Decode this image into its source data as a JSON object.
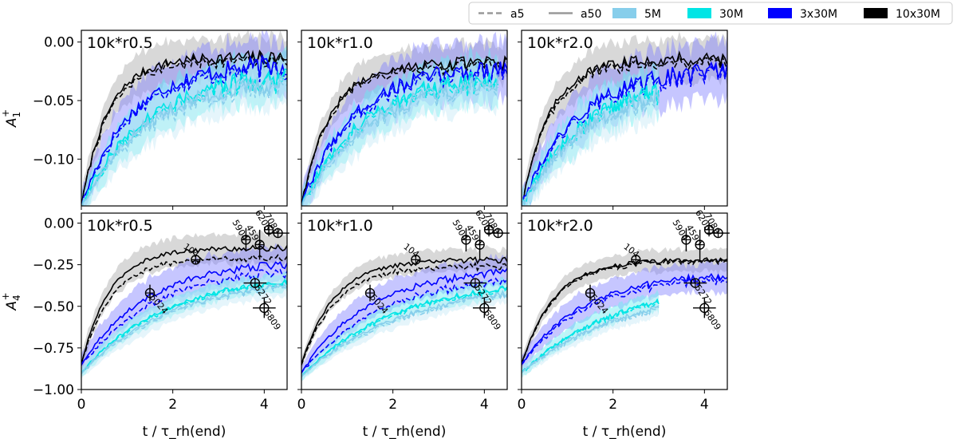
{
  "chart_data": {
    "type": "line",
    "layout": "2x3 grid of line plots with shaded bands",
    "legend": {
      "placement": "top-right",
      "entries": [
        {
          "label": "a5",
          "style": "dashed",
          "color": "#999999"
        },
        {
          "label": "a50",
          "style": "solid",
          "color": "#999999"
        },
        {
          "label": "5M",
          "style": "patch",
          "color": "#87ceeb"
        },
        {
          "label": "30M",
          "style": "patch",
          "color": "#00e5e5"
        },
        {
          "label": "3x30M",
          "style": "patch",
          "color": "#0000ff"
        },
        {
          "label": "10x30M",
          "style": "patch",
          "color": "#000000"
        }
      ]
    },
    "xlabel": "t / τ_rh(end)",
    "xlim": [
      0,
      4.5
    ],
    "xticks": [
      "0",
      "2",
      "4"
    ],
    "rows": [
      {
        "ylabel_main": "A",
        "ylabel_sub": "1",
        "ylabel_sup": "+",
        "ylim": [
          -0.14,
          0.01
        ],
        "yticks": [
          {
            "v": 0.0,
            "label": "0.00"
          },
          {
            "v": -0.05,
            "label": "−0.05"
          },
          {
            "v": -0.1,
            "label": "−0.10"
          }
        ],
        "panels": [
          {
            "title": "10k*r0.5",
            "series": [
              {
                "name": "10x30M",
                "color": "#000000",
                "band": "#a9a9a9",
                "xmax": 4.5,
                "start": -0.14,
                "end": -0.013,
                "k": 1.7,
                "noise": 0.002,
                "width": 0.016
              },
              {
                "name": "3x30M",
                "color": "#0000ff",
                "band": "#8080ff",
                "xmax": 4.5,
                "start": -0.14,
                "end": -0.018,
                "k": 0.95,
                "noise": 0.003,
                "width": 0.02
              },
              {
                "name": "30M",
                "color": "#00e5e5",
                "band": "#66f0f0",
                "xmax": 4.5,
                "start": -0.14,
                "end": -0.026,
                "k": 0.75,
                "noise": 0.003,
                "width": 0.018
              },
              {
                "name": "5M",
                "color": "#87ceeb",
                "band": "#c6e9f6",
                "xmax": 4.5,
                "start": -0.14,
                "end": -0.03,
                "k": 0.7,
                "noise": 0.003,
                "width": 0.018
              }
            ]
          },
          {
            "title": "10k*r1.0",
            "series": [
              {
                "name": "10x30M",
                "color": "#000000",
                "band": "#a9a9a9",
                "xmax": 4.5,
                "start": -0.14,
                "end": -0.018,
                "k": 1.6,
                "noise": 0.002,
                "width": 0.014
              },
              {
                "name": "3x30M",
                "color": "#0000ff",
                "band": "#8080ff",
                "xmax": 4.5,
                "start": -0.14,
                "end": -0.02,
                "k": 0.9,
                "noise": 0.003,
                "width": 0.022
              },
              {
                "name": "30M",
                "color": "#00e5e5",
                "band": "#66f0f0",
                "xmax": 4.3,
                "start": -0.14,
                "end": -0.026,
                "k": 0.75,
                "noise": 0.003,
                "width": 0.018
              },
              {
                "name": "5M",
                "color": "#87ceeb",
                "band": "#c6e9f6",
                "xmax": 4.3,
                "start": -0.14,
                "end": -0.03,
                "k": 0.7,
                "noise": 0.003,
                "width": 0.018
              }
            ]
          },
          {
            "title": "10k*r2.0",
            "series": [
              {
                "name": "10x30M",
                "color": "#000000",
                "band": "#a9a9a9",
                "xmax": 4.5,
                "start": -0.14,
                "end": -0.014,
                "k": 1.6,
                "noise": 0.002,
                "width": 0.016
              },
              {
                "name": "3x30M",
                "color": "#0000ff",
                "band": "#8080ff",
                "xmax": 4.5,
                "start": -0.14,
                "end": -0.022,
                "k": 0.85,
                "noise": 0.003,
                "width": 0.022
              },
              {
                "name": "30M",
                "color": "#00e5e5",
                "band": "#66f0f0",
                "xmax": 3.0,
                "start": -0.14,
                "end": -0.03,
                "k": 0.75,
                "noise": 0.003,
                "width": 0.018
              },
              {
                "name": "5M",
                "color": "#87ceeb",
                "band": "#c6e9f6",
                "xmax": 3.0,
                "start": -0.14,
                "end": -0.034,
                "k": 0.7,
                "noise": 0.003,
                "width": 0.018
              }
            ]
          }
        ]
      },
      {
        "ylabel_main": "A",
        "ylabel_sub": "4",
        "ylabel_sup": "+",
        "ylim": [
          -1.0,
          0.06
        ],
        "yticks": [
          {
            "v": 0.0,
            "label": "0.00"
          },
          {
            "v": -0.25,
            "label": "−0.25"
          },
          {
            "v": -0.5,
            "label": "−0.50"
          },
          {
            "v": -0.75,
            "label": "−0.75"
          },
          {
            "v": -1.0,
            "label": "−1.00"
          }
        ],
        "observations": [
          {
            "label": "104",
            "x": 2.5,
            "y": -0.22,
            "xerr": 0.0,
            "yerr": 0.0,
            "rot": 38
          },
          {
            "label": "5904",
            "x": 3.6,
            "y": -0.1,
            "xerr": 0.0,
            "yerr": 0.07,
            "rot": 60
          },
          {
            "label": "4590",
            "x": 3.9,
            "y": -0.13,
            "xerr": 0.0,
            "yerr": 0.09,
            "rot": 60
          },
          {
            "label": "6205",
            "x": 4.1,
            "y": -0.04,
            "xerr": 0.0,
            "yerr": 0.04,
            "rot": 60
          },
          {
            "label": "7089",
            "x": 4.3,
            "y": -0.06,
            "xerr": 0.25,
            "yerr": 0.0,
            "rot": 60
          },
          {
            "label": "5024",
            "x": 1.5,
            "y": -0.42,
            "xerr": 0.0,
            "yerr": 0.05,
            "rot": 50
          },
          {
            "label": "5272",
            "x": 3.8,
            "y": -0.36,
            "xerr": 0.25,
            "yerr": 0.0,
            "rot": 55
          },
          {
            "label": "6809",
            "x": 4.0,
            "y": -0.51,
            "xerr": 0.25,
            "yerr": 0.06,
            "rot": 55
          }
        ],
        "panels": [
          {
            "title": "10k*r0.5",
            "series": [
              {
                "name": "10x30M",
                "color": "#000000",
                "band": "#a9a9a9",
                "xmax": 4.5,
                "start": -0.85,
                "end": -0.15,
                "k": 1.6,
                "noise": 0.006,
                "width": 0.08,
                "dashoff": -0.06
              },
              {
                "name": "3x30M",
                "color": "#0000ff",
                "band": "#8080ff",
                "xmax": 4.5,
                "start": -0.85,
                "end": -0.22,
                "k": 0.7,
                "noise": 0.008,
                "width": 0.1,
                "dashoff": -0.05
              },
              {
                "name": "30M",
                "color": "#00e5e5",
                "band": "#66f0f0",
                "xmax": 4.5,
                "start": -0.9,
                "end": -0.3,
                "k": 0.55,
                "noise": 0.006,
                "width": 0.05,
                "dashoff": -0.01
              },
              {
                "name": "5M",
                "color": "#87ceeb",
                "band": "#c6e9f6",
                "xmax": 4.5,
                "start": -0.9,
                "end": -0.31,
                "k": 0.5,
                "noise": 0.006,
                "width": 0.06,
                "dashoff": -0.01
              }
            ]
          },
          {
            "title": "10k*r1.0",
            "series": [
              {
                "name": "10x30M",
                "color": "#000000",
                "band": "#a9a9a9",
                "xmax": 4.5,
                "start": -0.85,
                "end": -0.22,
                "k": 1.4,
                "noise": 0.006,
                "width": 0.06,
                "dashoff": -0.04
              },
              {
                "name": "3x30M",
                "color": "#0000ff",
                "band": "#8080ff",
                "xmax": 4.5,
                "start": -0.9,
                "end": -0.27,
                "k": 0.7,
                "noise": 0.008,
                "width": 0.08,
                "dashoff": -0.06
              },
              {
                "name": "30M",
                "color": "#00e5e5",
                "band": "#66f0f0",
                "xmax": 4.5,
                "start": -0.92,
                "end": -0.33,
                "k": 0.5,
                "noise": 0.006,
                "width": 0.05,
                "dashoff": -0.01
              },
              {
                "name": "5M",
                "color": "#87ceeb",
                "band": "#c6e9f6",
                "xmax": 4.5,
                "start": -0.92,
                "end": -0.35,
                "k": 0.45,
                "noise": 0.006,
                "width": 0.05,
                "dashoff": -0.01
              }
            ]
          },
          {
            "title": "10k*r2.0",
            "series": [
              {
                "name": "10x30M",
                "color": "#000000",
                "band": "#a9a9a9",
                "xmax": 4.5,
                "start": -0.85,
                "end": -0.22,
                "k": 1.4,
                "noise": 0.006,
                "width": 0.06,
                "dashoff": -0.01
              },
              {
                "name": "3x30M",
                "color": "#0000ff",
                "band": "#8080ff",
                "xmax": 4.5,
                "start": -0.85,
                "end": -0.3,
                "k": 0.75,
                "noise": 0.008,
                "width": 0.08,
                "dashoff": -0.02
              },
              {
                "name": "30M",
                "color": "#00e5e5",
                "band": "#66f0f0",
                "xmax": 3.0,
                "start": -0.9,
                "end": -0.35,
                "k": 0.5,
                "noise": 0.006,
                "width": 0.05,
                "dashoff": -0.01
              },
              {
                "name": "5M",
                "color": "#87ceeb",
                "band": "#c6e9f6",
                "xmax": 3.0,
                "start": -0.9,
                "end": -0.37,
                "k": 0.45,
                "noise": 0.006,
                "width": 0.05,
                "dashoff": -0.01
              }
            ]
          }
        ]
      }
    ]
  }
}
